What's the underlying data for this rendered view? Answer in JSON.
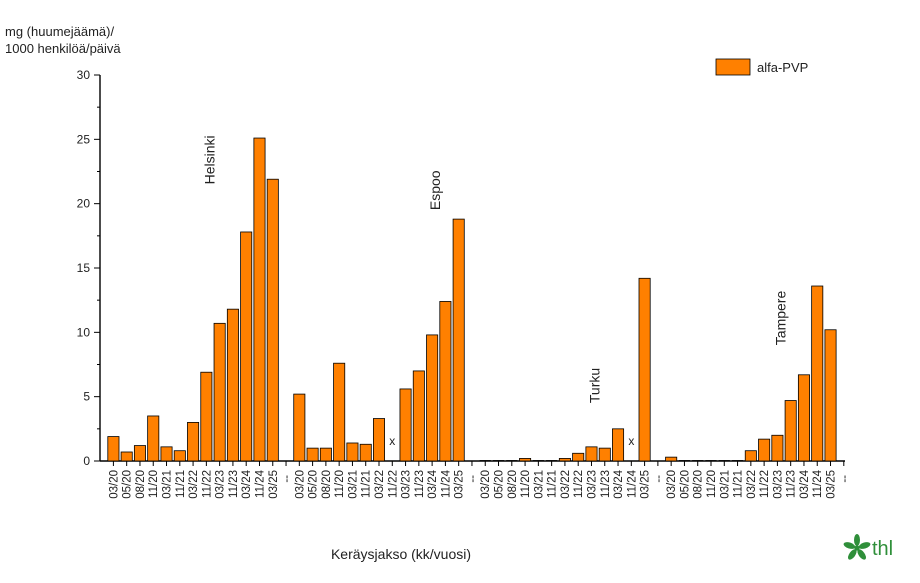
{
  "chart_data": {
    "type": "bar",
    "ylabel_line1": "mg (huumejäämä)/",
    "ylabel_line2": "1000 henkilöä/päivä",
    "xlabel": "Keräysjakso (kk/vuosi)",
    "ylim": [
      0,
      30
    ],
    "yticks": [
      0,
      5,
      10,
      15,
      20,
      25,
      30
    ],
    "legend": "alfa-PVP",
    "legend_position": "top-right",
    "bar_color": "#ff8000",
    "missing_marker": "x",
    "separator_label": "--",
    "groups": [
      {
        "city": "Helsinki",
        "categories": [
          "03/20",
          "05/20",
          "08/20",
          "11/20",
          "03/21",
          "11/21",
          "03/22",
          "11/22",
          "03/23",
          "11/23",
          "03/24",
          "11/24",
          "03/25"
        ],
        "values": [
          1.9,
          0.7,
          1.2,
          3.5,
          1.1,
          0.8,
          3.0,
          6.9,
          10.7,
          11.8,
          17.8,
          25.1,
          21.9
        ]
      },
      {
        "city": "Espoo",
        "categories": [
          "03/20",
          "05/20",
          "08/20",
          "11/20",
          "03/21",
          "11/21",
          "03/22",
          "11/22",
          "03/23",
          "11/23",
          "03/24",
          "11/24",
          "03/25"
        ],
        "values": [
          5.2,
          1.0,
          1.0,
          7.6,
          1.4,
          1.3,
          3.3,
          null,
          5.6,
          7.0,
          9.8,
          12.4,
          18.8
        ]
      },
      {
        "city": "Turku",
        "categories": [
          "03/20",
          "05/20",
          "08/20",
          "11/20",
          "03/21",
          "11/21",
          "03/22",
          "11/22",
          "03/23",
          "11/23",
          "03/24",
          "11/24",
          "03/25"
        ],
        "values": [
          0,
          0,
          0,
          0.2,
          0,
          0,
          0.2,
          0.6,
          1.1,
          1.0,
          2.5,
          null,
          14.2
        ]
      },
      {
        "city": "Tampere",
        "categories": [
          "03/20",
          "05/20",
          "08/20",
          "11/20",
          "03/21",
          "11/21",
          "03/22",
          "11/22",
          "03/23",
          "11/23",
          "03/24",
          "11/24",
          "03/25"
        ],
        "values": [
          0.3,
          0,
          0,
          0,
          0,
          0,
          0.8,
          1.7,
          2.0,
          4.7,
          6.7,
          13.6,
          10.2
        ]
      }
    ]
  },
  "logo": {
    "text": "thl",
    "color": "#2f8f3a"
  }
}
